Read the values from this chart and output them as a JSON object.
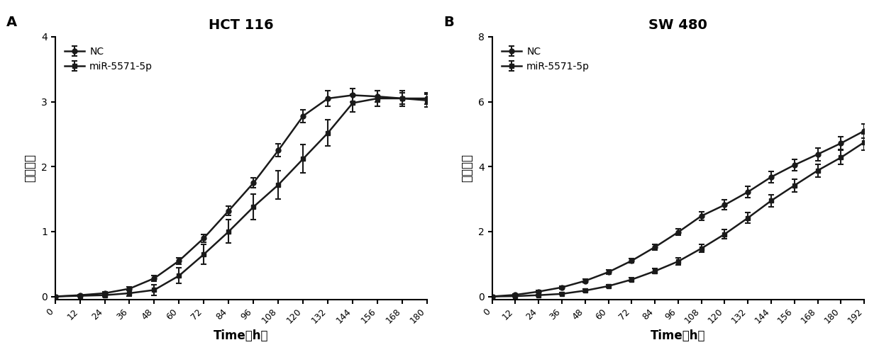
{
  "panel_A": {
    "title": "HCT 116",
    "label": "A",
    "xlabel": "Time（h）",
    "ylabel": "细胞指数",
    "xlim": [
      0,
      180
    ],
    "ylim": [
      -0.05,
      4
    ],
    "yticks": [
      0,
      1,
      2,
      3,
      4
    ],
    "xticks": [
      0,
      12,
      24,
      36,
      48,
      60,
      72,
      84,
      96,
      108,
      120,
      132,
      144,
      156,
      168,
      180
    ],
    "NC": {
      "x": [
        0,
        12,
        24,
        36,
        48,
        60,
        72,
        84,
        96,
        108,
        120,
        132,
        144,
        156,
        168,
        180
      ],
      "y": [
        0,
        0.02,
        0.05,
        0.12,
        0.28,
        0.55,
        0.9,
        1.32,
        1.75,
        2.25,
        2.78,
        3.05,
        3.1,
        3.08,
        3.05,
        3.05
      ],
      "yerr": [
        0.01,
        0.01,
        0.02,
        0.03,
        0.04,
        0.05,
        0.06,
        0.07,
        0.08,
        0.1,
        0.1,
        0.12,
        0.1,
        0.09,
        0.09,
        0.09
      ]
    },
    "miR": {
      "x": [
        0,
        12,
        24,
        36,
        48,
        60,
        72,
        84,
        96,
        108,
        120,
        132,
        144,
        156,
        168,
        180
      ],
      "y": [
        0,
        0.01,
        0.02,
        0.05,
        0.1,
        0.32,
        0.65,
        1.0,
        1.38,
        1.72,
        2.12,
        2.52,
        2.98,
        3.05,
        3.05,
        3.02
      ],
      "yerr": [
        0.01,
        0.01,
        0.02,
        0.04,
        0.08,
        0.12,
        0.15,
        0.18,
        0.2,
        0.22,
        0.22,
        0.2,
        0.14,
        0.12,
        0.12,
        0.1
      ]
    }
  },
  "panel_B": {
    "title": "SW 480",
    "label": "B",
    "xlabel": "Time（h）",
    "ylabel": "细胞指数",
    "xlim": [
      0,
      192
    ],
    "ylim": [
      -0.1,
      8
    ],
    "yticks": [
      0,
      2,
      4,
      6,
      8
    ],
    "xticks": [
      0,
      12,
      24,
      36,
      48,
      60,
      72,
      84,
      96,
      108,
      120,
      132,
      144,
      156,
      168,
      180,
      192
    ],
    "NC": {
      "x": [
        0,
        12,
        24,
        36,
        48,
        60,
        72,
        84,
        96,
        108,
        120,
        132,
        144,
        156,
        168,
        180,
        192
      ],
      "y": [
        0,
        0.05,
        0.15,
        0.28,
        0.48,
        0.75,
        1.1,
        1.52,
        1.98,
        2.48,
        2.82,
        3.22,
        3.68,
        4.05,
        4.38,
        4.72,
        5.1
      ],
      "yerr": [
        0.01,
        0.02,
        0.03,
        0.04,
        0.05,
        0.06,
        0.07,
        0.08,
        0.1,
        0.13,
        0.15,
        0.18,
        0.18,
        0.18,
        0.2,
        0.2,
        0.22
      ]
    },
    "miR": {
      "x": [
        0,
        12,
        24,
        36,
        48,
        60,
        72,
        84,
        96,
        108,
        120,
        132,
        144,
        156,
        168,
        180,
        192
      ],
      "y": [
        0,
        0.01,
        0.04,
        0.08,
        0.18,
        0.32,
        0.52,
        0.78,
        1.08,
        1.48,
        1.92,
        2.42,
        2.95,
        3.42,
        3.88,
        4.28,
        4.75
      ],
      "yerr": [
        0.01,
        0.01,
        0.02,
        0.03,
        0.04,
        0.05,
        0.06,
        0.08,
        0.1,
        0.12,
        0.14,
        0.17,
        0.18,
        0.2,
        0.2,
        0.22,
        0.25
      ]
    }
  },
  "line_color": "#1a1a1a",
  "background_color": "#ffffff",
  "legend_NC": "NC",
  "legend_miR": "miR-5571-5p"
}
